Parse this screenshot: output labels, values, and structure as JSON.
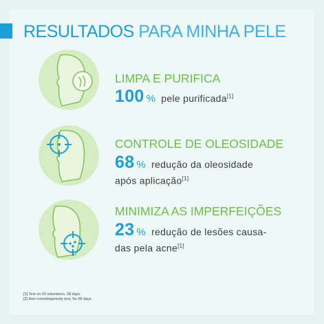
{
  "header": {
    "title_bold": "RESULTADOS",
    "title_light": "PARA MINHA PELE"
  },
  "items": [
    {
      "heading": "LIMPA E PURIFICA",
      "number": "100",
      "unit": "%",
      "lines": [
        "pele purificada"
      ],
      "ref": "[1]"
    },
    {
      "heading": "CONTROLE DE OLEOSIDADE",
      "number": "68",
      "unit": "%",
      "lines": [
        "redução da oleosidade",
        "após aplicação"
      ],
      "ref": "[1]"
    },
    {
      "heading": "MINIMIZA AS IMPERFEIÇÕES",
      "number": "23",
      "unit": "%",
      "lines": [
        "redução de lesões causa-",
        "das pela acne"
      ],
      "ref": "[1]"
    }
  ],
  "footnotes": [
    "[1] Test on 20 volunteers, 28 days.",
    "[2] Non-comedogenicity test, for 28 days."
  ]
}
